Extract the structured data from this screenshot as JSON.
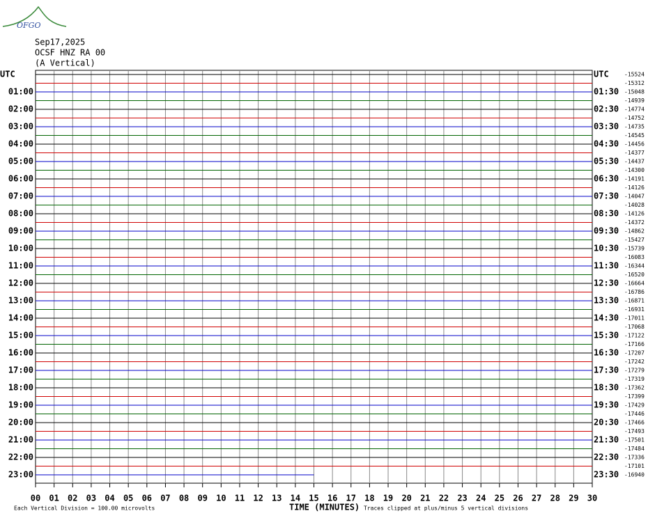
{
  "logo": "OFGO",
  "header": [
    "Sep17,2025",
    "OCSF HNZ RA 00",
    "(A Vertical)"
  ],
  "left_labels": [
    "UTC",
    "01:00",
    "02:00",
    "03:00",
    "04:00",
    "05:00",
    "06:00",
    "07:00",
    "08:00",
    "09:00",
    "10:00",
    "11:00",
    "12:00",
    "13:00",
    "14:00",
    "15:00",
    "16:00",
    "17:00",
    "18:00",
    "19:00",
    "20:00",
    "21:00",
    "22:00",
    "23:00"
  ],
  "right_labels": [
    "UTC",
    "01:30",
    "02:30",
    "03:30",
    "04:30",
    "05:30",
    "06:30",
    "07:30",
    "08:30",
    "09:30",
    "10:30",
    "11:30",
    "12:30",
    "13:30",
    "14:30",
    "15:30",
    "16:30",
    "17:30",
    "18:30",
    "19:30",
    "20:30",
    "21:30",
    "22:30",
    "23:30"
  ],
  "trace_offsets": [
    "-15524",
    "-15312",
    "-15048",
    "-14939",
    "-14774",
    "-14752",
    "-14735",
    "-14545",
    "-14456",
    "-14377",
    "-14437",
    "-14300",
    "-14191",
    "-14126",
    "-14047",
    "-14028",
    "-14126",
    "-14372",
    "-14862",
    "-15427",
    "-15739",
    "-16083",
    "-16344",
    "-16520",
    "-16664",
    "-16786",
    "-16871",
    "-16931",
    "-17011",
    "-17068",
    "-17122",
    "-17166",
    "-17207",
    "-17242",
    "-17279",
    "-17319",
    "-17362",
    "-17399",
    "-17429",
    "-17446",
    "-17466",
    "-17493",
    "-17501",
    "-17484",
    "-17336",
    "-17101",
    "-16940"
  ],
  "x_ticks": [
    "00",
    "01",
    "02",
    "03",
    "04",
    "05",
    "06",
    "07",
    "08",
    "09",
    "10",
    "11",
    "12",
    "13",
    "14",
    "15",
    "16",
    "17",
    "18",
    "19",
    "20",
    "21",
    "22",
    "23",
    "24",
    "25",
    "26",
    "27",
    "28",
    "29",
    "30"
  ],
  "x_axis_title": "TIME (MINUTES)",
  "footer_left": "Each Vertical Division =  100.00 microvolts",
  "footer_right": "Traces clipped at plus/minus 5 vertical divisions"
}
